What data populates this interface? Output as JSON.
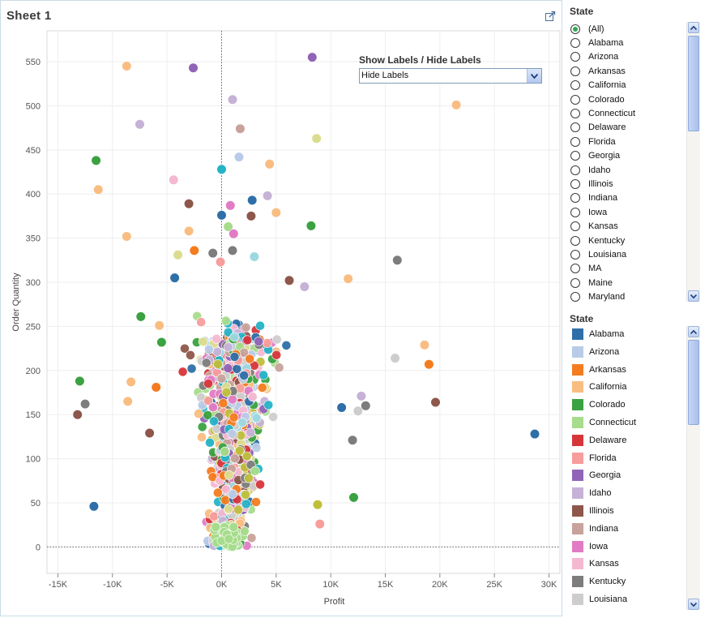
{
  "sheet": {
    "title": "Sheet 1"
  },
  "control": {
    "label": "Show Labels / Hide Labels",
    "selected": "Hide Labels"
  },
  "filter": {
    "title": "State",
    "items": [
      "(All)",
      "Alabama",
      "Arizona",
      "Arkansas",
      "California",
      "Colorado",
      "Connecticut",
      "Delaware",
      "Florida",
      "Georgia",
      "Idaho",
      "Illinois",
      "Indiana",
      "Iowa",
      "Kansas",
      "Kentucky",
      "Louisiana",
      "MA",
      "Maine",
      "Maryland"
    ],
    "selected": "(All)"
  },
  "legend": {
    "title": "State",
    "items": [
      {
        "label": "Alabama",
        "color": "#2e6fa8"
      },
      {
        "label": "Arizona",
        "color": "#b9cbe6"
      },
      {
        "label": "Arkansas",
        "color": "#f47c1f"
      },
      {
        "label": "California",
        "color": "#f9bd82"
      },
      {
        "label": "Colorado",
        "color": "#3aa240"
      },
      {
        "label": "Connecticut",
        "color": "#a6dc8b"
      },
      {
        "label": "Delaware",
        "color": "#d6363a"
      },
      {
        "label": "Florida",
        "color": "#f79d9b"
      },
      {
        "label": "Georgia",
        "color": "#9064b7"
      },
      {
        "label": "Idaho",
        "color": "#c6b2d6"
      },
      {
        "label": "Illinois",
        "color": "#8e574b"
      },
      {
        "label": "Indiana",
        "color": "#c8a29b"
      },
      {
        "label": "Iowa",
        "color": "#e17cc4"
      },
      {
        "label": "Kansas",
        "color": "#f5b8d1"
      },
      {
        "label": "Kentucky",
        "color": "#7d7d7d"
      },
      {
        "label": "Louisiana",
        "color": "#cdcdcd"
      }
    ]
  },
  "extra_colors": [
    "#bfbf3a",
    "#dcdc8f",
    "#26b3c7",
    "#9dd8e2"
  ],
  "chart_data": {
    "type": "scatter",
    "title": "Sheet 1",
    "xlabel": "Profit",
    "ylabel": "Order Quantity",
    "xlim": [
      -16000,
      31000
    ],
    "ylim": [
      -30,
      585
    ],
    "xticks": [
      -15000,
      -10000,
      -5000,
      0,
      5000,
      10000,
      15000,
      20000,
      25000,
      30000
    ],
    "xtick_labels": [
      "-15K",
      "-10K",
      "-5K",
      "0K",
      "5K",
      "10K",
      "15K",
      "20K",
      "25K",
      "30K"
    ],
    "yticks": [
      0,
      50,
      100,
      150,
      200,
      250,
      300,
      350,
      400,
      450,
      500,
      550
    ],
    "ytick_labels": [
      "0",
      "50",
      "100",
      "150",
      "200",
      "250",
      "300",
      "350",
      "400",
      "450",
      "500",
      "550"
    ],
    "reference_lines": {
      "x": 0,
      "y": 0
    },
    "grid": true,
    "notable_points": [
      {
        "x": -8700,
        "y": 545,
        "series": "California"
      },
      {
        "x": -2600,
        "y": 543,
        "series": "Georgia"
      },
      {
        "x": 8300,
        "y": 555,
        "series": "Georgia"
      },
      {
        "x": 21500,
        "y": 501,
        "series": "California"
      },
      {
        "x": 1000,
        "y": 507,
        "series": "Idaho"
      },
      {
        "x": -7500,
        "y": 479,
        "series": "Idaho"
      },
      {
        "x": 1700,
        "y": 474,
        "series": "Indiana"
      },
      {
        "x": 8700,
        "y": 463,
        "series": "extra-2"
      },
      {
        "x": 1600,
        "y": 442,
        "series": "Arizona"
      },
      {
        "x": -11500,
        "y": 438,
        "series": "Colorado"
      },
      {
        "x": 4400,
        "y": 434,
        "series": "California"
      },
      {
        "x": 0,
        "y": 428,
        "series": "extra-3"
      },
      {
        "x": -4400,
        "y": 416,
        "series": "Kansas"
      },
      {
        "x": -11300,
        "y": 405,
        "series": "California"
      },
      {
        "x": 4200,
        "y": 398,
        "series": "Idaho"
      },
      {
        "x": 2800,
        "y": 393,
        "series": "Alabama"
      },
      {
        "x": -3000,
        "y": 389,
        "series": "Illinois"
      },
      {
        "x": 800,
        "y": 387,
        "series": "Iowa"
      },
      {
        "x": 5000,
        "y": 379,
        "series": "California"
      },
      {
        "x": 0,
        "y": 376,
        "series": "Alabama"
      },
      {
        "x": 2700,
        "y": 375,
        "series": "Illinois"
      },
      {
        "x": 8200,
        "y": 364,
        "series": "Colorado"
      },
      {
        "x": 600,
        "y": 363,
        "series": "Connecticut"
      },
      {
        "x": -8700,
        "y": 352,
        "series": "California"
      },
      {
        "x": -3000,
        "y": 358,
        "series": "California"
      },
      {
        "x": 1100,
        "y": 355,
        "series": "Iowa"
      },
      {
        "x": -2500,
        "y": 336,
        "series": "Arkansas"
      },
      {
        "x": -4000,
        "y": 331,
        "series": "extra-2"
      },
      {
        "x": 1000,
        "y": 336,
        "series": "Kentucky"
      },
      {
        "x": -800,
        "y": 333,
        "series": "Kentucky"
      },
      {
        "x": 3000,
        "y": 329,
        "series": "extra-4"
      },
      {
        "x": -100,
        "y": 323,
        "series": "Florida"
      },
      {
        "x": 16100,
        "y": 325,
        "series": "Kentucky"
      },
      {
        "x": 11600,
        "y": 304,
        "series": "California"
      },
      {
        "x": -4300,
        "y": 305,
        "series": "Alabama"
      },
      {
        "x": 6200,
        "y": 302,
        "series": "Illinois"
      },
      {
        "x": 7600,
        "y": 295,
        "series": "Idaho"
      },
      {
        "x": 15900,
        "y": 214,
        "series": "Louisiana"
      },
      {
        "x": 18600,
        "y": 229,
        "series": "California"
      },
      {
        "x": 19000,
        "y": 207,
        "series": "Arkansas"
      },
      {
        "x": 19600,
        "y": 164,
        "series": "Illinois"
      },
      {
        "x": 28700,
        "y": 128,
        "series": "Alabama"
      },
      {
        "x": -13000,
        "y": 188,
        "series": "Colorado"
      },
      {
        "x": -12500,
        "y": 162,
        "series": "Kentucky"
      },
      {
        "x": -13200,
        "y": 150,
        "series": "Illinois"
      },
      {
        "x": -11700,
        "y": 46,
        "series": "Alabama"
      },
      {
        "x": -7400,
        "y": 261,
        "series": "Colorado"
      },
      {
        "x": -5700,
        "y": 251,
        "series": "California"
      },
      {
        "x": -5500,
        "y": 232,
        "series": "Colorado"
      },
      {
        "x": -8300,
        "y": 187,
        "series": "California"
      },
      {
        "x": -6000,
        "y": 181,
        "series": "Arkansas"
      },
      {
        "x": -8600,
        "y": 165,
        "series": "California"
      },
      {
        "x": -6600,
        "y": 129,
        "series": "Illinois"
      },
      {
        "x": 12100,
        "y": 56,
        "series": "Colorado"
      },
      {
        "x": 8800,
        "y": 48,
        "series": "extra-1"
      },
      {
        "x": 9000,
        "y": 26,
        "series": "Florida"
      },
      {
        "x": 13200,
        "y": 160,
        "series": "Kentucky"
      },
      {
        "x": 12800,
        "y": 171,
        "series": "Idaho"
      },
      {
        "x": 12500,
        "y": 154,
        "series": "Louisiana"
      },
      {
        "x": 12000,
        "y": 121,
        "series": "Kentucky"
      },
      {
        "x": 11000,
        "y": 158,
        "series": "Alabama"
      }
    ],
    "dense_cluster": "about 1000 additional points concentrated around Profit -3K to 7K, Order Quantity 0 to 260, colored by State"
  }
}
